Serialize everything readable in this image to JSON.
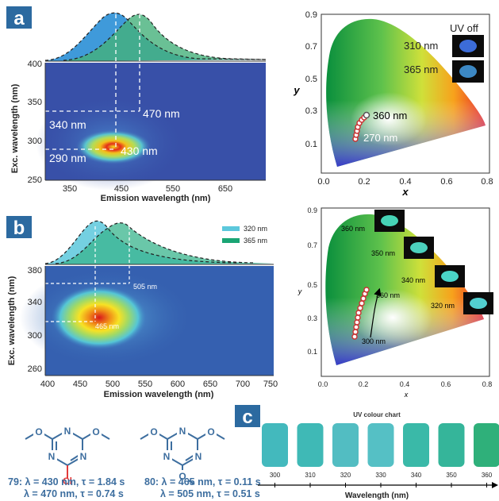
{
  "panels": {
    "a": {
      "label": "a"
    },
    "b": {
      "label": "b"
    },
    "c": {
      "label": "c"
    }
  },
  "colors": {
    "panel_label_bg": "#2c6aa0",
    "spec_blue": "#2a8fd6",
    "spec_green": "#45b07a",
    "spec_cyan": "#5cc8dc",
    "spec_teal": "#38b48c",
    "map_bg": "#3850a8",
    "structure": "#3d6e9f",
    "chlorine": "#e23b3b"
  },
  "panel_a": {
    "map": {
      "xlabel": "Emission wavelength (nm)",
      "ylabel": "Exc. wavelength (nm)",
      "xticks": [
        "350",
        "450",
        "550",
        "650"
      ],
      "yticks": [
        "250",
        "300",
        "350",
        "400"
      ],
      "annotations": [
        "340 nm",
        "470 nm",
        "290 nm",
        "430 nm"
      ]
    },
    "cie": {
      "xlabel": "x",
      "ylabel": "y",
      "xticks": [
        "0.0",
        "0.2",
        "0.4",
        "0.6",
        "0.8"
      ],
      "yticks": [
        "0.1",
        "0.3",
        "0.5",
        "0.7",
        "0.9"
      ],
      "legend_title": "UV off",
      "legend_items": [
        "310 nm",
        "365 nm"
      ],
      "point_labels": [
        "360 nm",
        "270 nm"
      ]
    }
  },
  "panel_b": {
    "map": {
      "xlabel": "Emission wavelength (nm)",
      "ylabel": "Exc. wavelength (nm)",
      "xticks": [
        "400",
        "450",
        "500",
        "550",
        "600",
        "650",
        "700",
        "750"
      ],
      "yticks": [
        "260",
        "300",
        "340",
        "380"
      ],
      "annotations": [
        "505 nm",
        "465 nm"
      ],
      "legend": [
        "320 nm",
        "365 nm"
      ]
    },
    "cie": {
      "xlabel": "x",
      "ylabel": "y",
      "xticks": [
        "0.0",
        "0.2",
        "0.4",
        "0.6",
        "0.8"
      ],
      "yticks": [
        "0.1",
        "0.3",
        "0.5",
        "0.7",
        "0.9"
      ],
      "image_labels": [
        "360 nm",
        "350 nm",
        "340 nm",
        "320 nm"
      ],
      "point_labels": [
        "360 nm",
        "300 nm"
      ]
    }
  },
  "compounds": [
    {
      "line1": "79: λ = 430 nm, τ = 1.84 s",
      "line2": "λ = 470 nm, τ = 0.74 s",
      "atom": "Cl"
    },
    {
      "line1": "80: λ = 465 nm, τ = 0.11 s",
      "line2": "λ = 505 nm, τ = 0.51 s"
    }
  ],
  "uv_chart": {
    "title": "UV colour chart",
    "xlabel": "Wavelength (nm)",
    "swatches": [
      {
        "label": "300",
        "color": "#43b9bd"
      },
      {
        "label": "310",
        "color": "#3fb9b6"
      },
      {
        "label": "320",
        "color": "#52bdc2"
      },
      {
        "label": "330",
        "color": "#55c0c5"
      },
      {
        "label": "340",
        "color": "#3ab9a8"
      },
      {
        "label": "350",
        "color": "#35b59a"
      },
      {
        "label": "360",
        "color": "#2fb07a"
      }
    ]
  }
}
